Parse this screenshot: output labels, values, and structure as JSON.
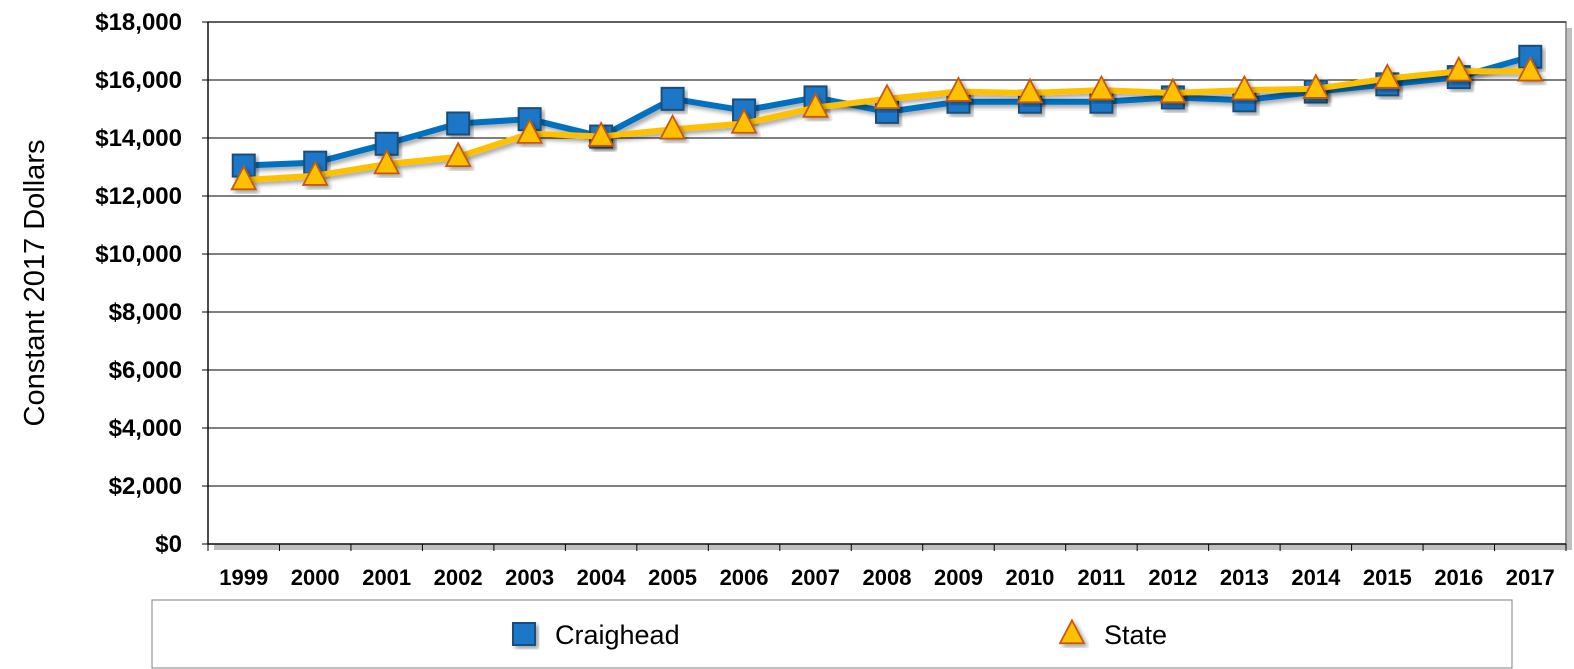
{
  "chart_data": {
    "type": "line",
    "title": "",
    "xlabel": "",
    "ylabel": "Constant 2017 Dollars",
    "ylim": [
      0,
      18000
    ],
    "y_ticks": [
      "$0",
      "$2,000",
      "$4,000",
      "$6,000",
      "$8,000",
      "$10,000",
      "$12,000",
      "$14,000",
      "$16,000",
      "$18,000"
    ],
    "categories": [
      "1999",
      "2000",
      "2001",
      "2002",
      "2003",
      "2004",
      "2005",
      "2006",
      "2007",
      "2008",
      "2009",
      "2010",
      "2011",
      "2012",
      "2013",
      "2014",
      "2015",
      "2016",
      "2017"
    ],
    "grid": true,
    "legend_position": "bottom",
    "series": [
      {
        "name": "Craighead",
        "marker": "square",
        "color": "#0070C0",
        "marker_fill": "#1F77C8",
        "marker_stroke": "#1F4E79",
        "values": [
          13050,
          13150,
          13800,
          14500,
          14650,
          14050,
          15350,
          14950,
          15400,
          14900,
          15250,
          15250,
          15250,
          15400,
          15300,
          15600,
          15850,
          16100,
          16800
        ]
      },
      {
        "name": "State",
        "marker": "triangle",
        "color": "#FFC000",
        "marker_fill": "#FFC000",
        "marker_stroke": "#C55A11",
        "values": [
          12550,
          12700,
          13100,
          13350,
          14150,
          14050,
          14300,
          14500,
          15050,
          15350,
          15600,
          15550,
          15650,
          15550,
          15650,
          15700,
          16050,
          16300,
          16300
        ]
      }
    ]
  }
}
